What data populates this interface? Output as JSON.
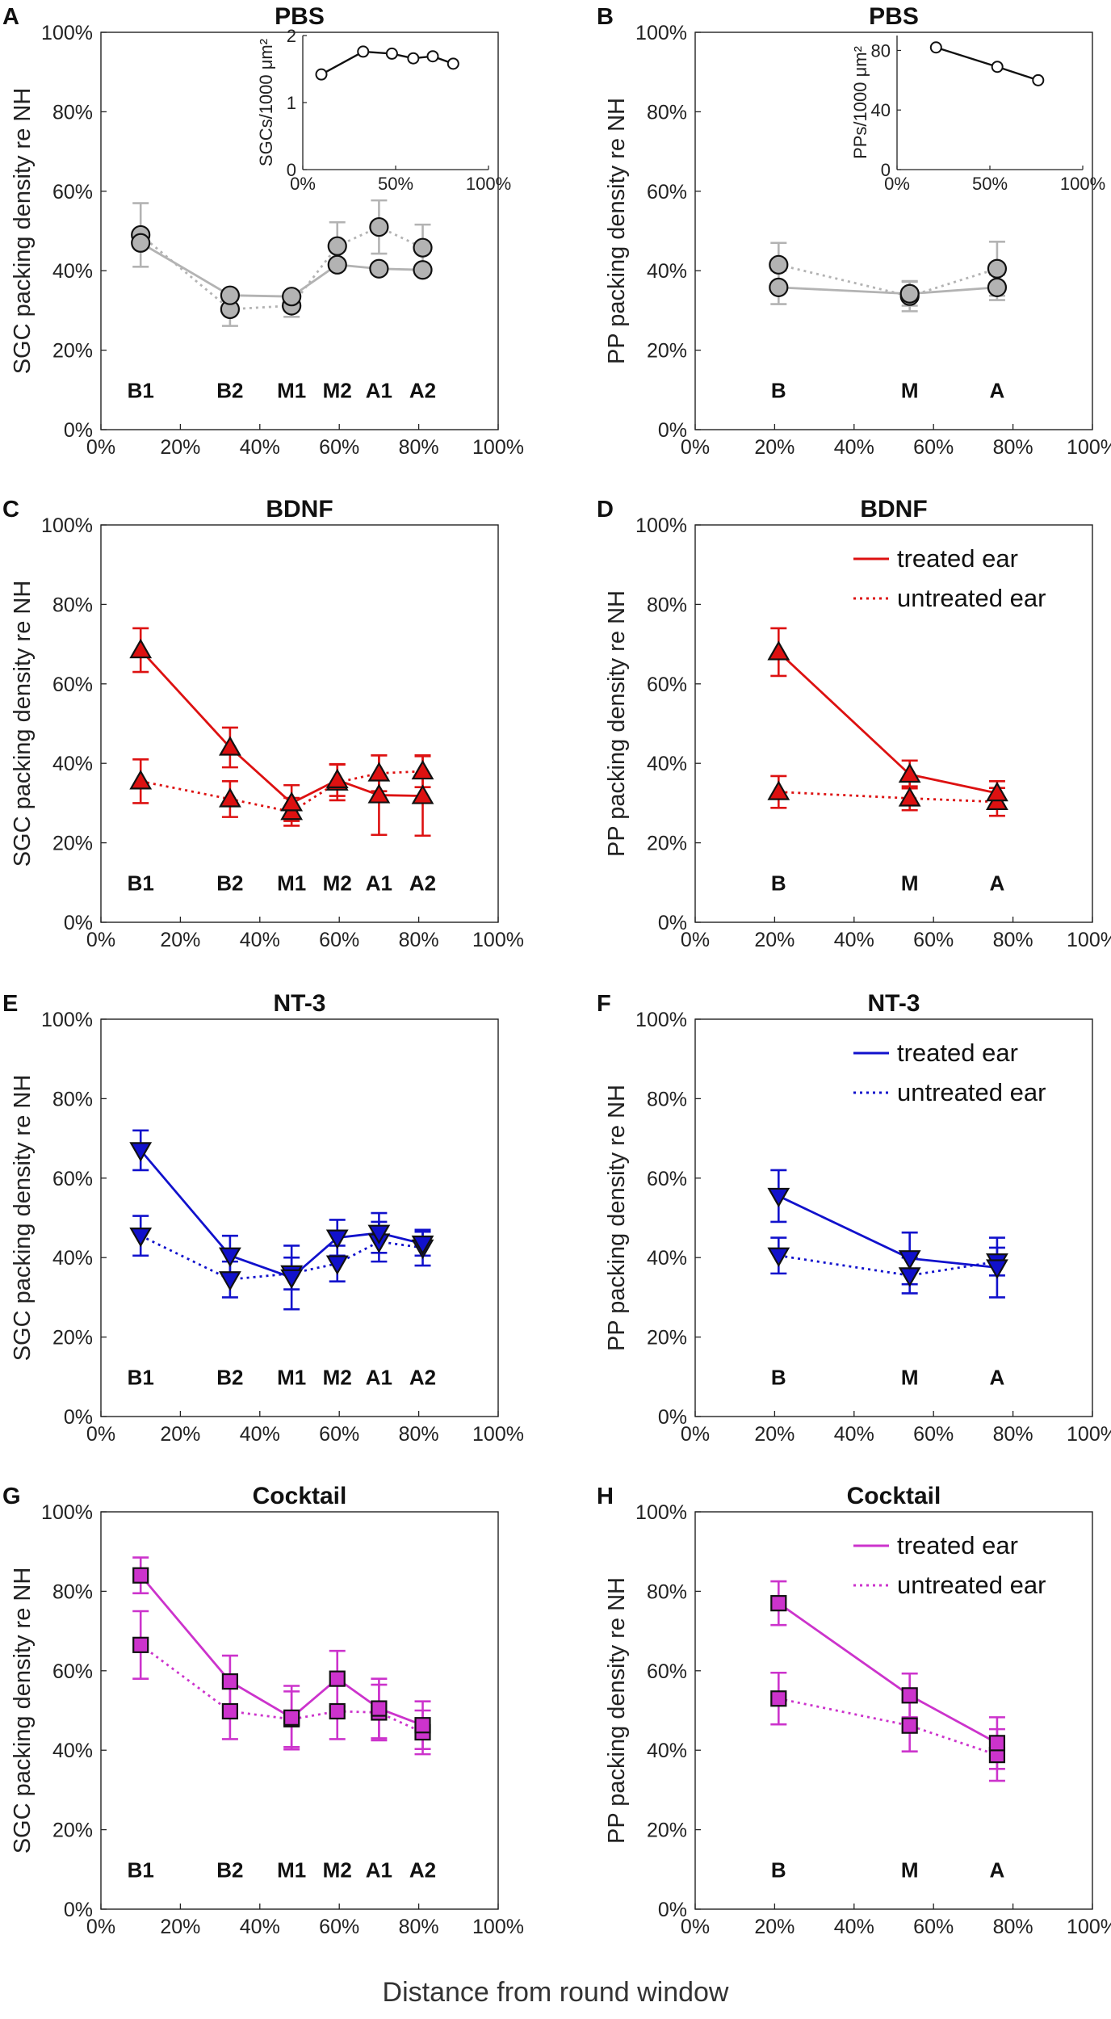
{
  "figure": {
    "xlabel": "Distance from round window"
  },
  "colors": {
    "PBS": "#b3b3b3",
    "BDNF": "#dd1111",
    "NT-3": "#1111cc",
    "Cocktail": "#cc33cc"
  },
  "chart_data": [
    {
      "panel": "A",
      "title": "PBS",
      "type": "line",
      "ylabel": "SGC packing density re NH",
      "xlim": [
        0,
        100
      ],
      "ylim": [
        0,
        100
      ],
      "xticks": [
        "0%",
        "20%",
        "40%",
        "60%",
        "80%",
        "100%"
      ],
      "yticks": [
        "0%",
        "20%",
        "40%",
        "60%",
        "80%",
        "100%"
      ],
      "regions": [
        {
          "label": "B1",
          "x": 10
        },
        {
          "label": "B2",
          "x": 32.5
        },
        {
          "label": "M1",
          "x": 48
        },
        {
          "label": "M2",
          "x": 59.5
        },
        {
          "label": "A1",
          "x": 70
        },
        {
          "label": "A2",
          "x": 81
        }
      ],
      "marker": "circle",
      "series": [
        {
          "name": "treated ear",
          "style": "solid",
          "x": [
            10,
            32.5,
            48,
            59.5,
            70,
            81
          ],
          "y": [
            47,
            33.8,
            33.5,
            41.5,
            40.5,
            40.2
          ],
          "err": [
            0,
            0,
            0,
            0,
            0,
            0
          ]
        },
        {
          "name": "untreated ear",
          "style": "dotted",
          "x": [
            10,
            32.5,
            48,
            59.5,
            70,
            81
          ],
          "y": [
            49,
            30.3,
            31.2,
            46.2,
            51,
            45.8
          ],
          "err": [
            8,
            4.2,
            2.8,
            6,
            6.7,
            5.8
          ]
        }
      ],
      "inset": {
        "ylabel": "SGCs/1000 μm²",
        "xlim": [
          0,
          100
        ],
        "ylim": [
          0,
          2
        ],
        "xticks": [
          "0%",
          "50%",
          "100%"
        ],
        "yticks": [
          "0",
          "1",
          "2"
        ],
        "x": [
          10,
          32.5,
          48,
          59.5,
          70,
          81
        ],
        "y": [
          1.42,
          1.76,
          1.73,
          1.66,
          1.69,
          1.58
        ]
      }
    },
    {
      "panel": "B",
      "title": "PBS",
      "type": "line",
      "ylabel": "PP packing density re NH",
      "xlim": [
        0,
        100
      ],
      "ylim": [
        0,
        100
      ],
      "xticks": [
        "0%",
        "20%",
        "40%",
        "60%",
        "80%",
        "100%"
      ],
      "yticks": [
        "0%",
        "20%",
        "40%",
        "60%",
        "80%",
        "100%"
      ],
      "regions": [
        {
          "label": "B",
          "x": 21
        },
        {
          "label": "M",
          "x": 54
        },
        {
          "label": "A",
          "x": 76
        }
      ],
      "marker": "circle",
      "series": [
        {
          "name": "treated ear",
          "style": "solid",
          "x": [
            21,
            54,
            76
          ],
          "y": [
            35.8,
            34.2,
            35.8
          ],
          "err": [
            4.2,
            3,
            3.2
          ]
        },
        {
          "name": "untreated ear",
          "style": "dotted",
          "x": [
            21,
            54,
            76
          ],
          "y": [
            41.5,
            33.6,
            40.5
          ],
          "err": [
            5.5,
            3.8,
            6.8
          ]
        }
      ],
      "inset": {
        "ylabel": "PPs/1000 μm²",
        "xlim": [
          0,
          100
        ],
        "ylim": [
          0,
          90
        ],
        "xticks": [
          "0%",
          "50%",
          "100%"
        ],
        "yticks": [
          "0",
          "40",
          "80"
        ],
        "x": [
          21,
          54,
          76
        ],
        "y": [
          82,
          69,
          60
        ]
      }
    },
    {
      "panel": "C",
      "title": "BDNF",
      "type": "line",
      "ylabel": "SGC packing density re NH",
      "xlim": [
        0,
        100
      ],
      "ylim": [
        0,
        100
      ],
      "xticks": [
        "0%",
        "20%",
        "40%",
        "60%",
        "80%",
        "100%"
      ],
      "yticks": [
        "0%",
        "20%",
        "40%",
        "60%",
        "80%",
        "100%"
      ],
      "regions": [
        {
          "label": "B1",
          "x": 10
        },
        {
          "label": "B2",
          "x": 32.5
        },
        {
          "label": "M1",
          "x": 48
        },
        {
          "label": "M2",
          "x": 59.5
        },
        {
          "label": "A1",
          "x": 70
        },
        {
          "label": "A2",
          "x": 81
        }
      ],
      "marker": "triangle-up",
      "series": [
        {
          "name": "treated ear",
          "style": "solid",
          "x": [
            10,
            32.5,
            48,
            59.5,
            70,
            81
          ],
          "y": [
            68.5,
            44,
            30,
            35.8,
            32,
            31.8
          ],
          "err": [
            5.5,
            5,
            4.5,
            4,
            10,
            10
          ]
        },
        {
          "name": "untreated ear",
          "style": "dotted",
          "x": [
            10,
            32.5,
            48,
            59.5,
            70,
            81
          ],
          "y": [
            35.5,
            31,
            27.8,
            35.2,
            37.5,
            38
          ],
          "err": [
            5.5,
            4.5,
            3.5,
            4.5,
            4.5,
            4
          ]
        }
      ]
    },
    {
      "panel": "D",
      "title": "BDNF",
      "type": "line",
      "ylabel": "PP packing density re NH",
      "xlim": [
        0,
        100
      ],
      "ylim": [
        0,
        100
      ],
      "xticks": [
        "0%",
        "20%",
        "40%",
        "60%",
        "80%",
        "100%"
      ],
      "yticks": [
        "0%",
        "20%",
        "40%",
        "60%",
        "80%",
        "100%"
      ],
      "regions": [
        {
          "label": "B",
          "x": 21
        },
        {
          "label": "M",
          "x": 54
        },
        {
          "label": "A",
          "x": 76
        }
      ],
      "marker": "triangle-up",
      "legend": [
        "treated ear",
        "untreated ear"
      ],
      "series": [
        {
          "name": "treated ear",
          "style": "solid",
          "x": [
            21,
            54,
            76
          ],
          "y": [
            68,
            37.2,
            32.5
          ],
          "err": [
            6,
            3.5,
            3
          ]
        },
        {
          "name": "untreated ear",
          "style": "dotted",
          "x": [
            21,
            54,
            76
          ],
          "y": [
            32.8,
            31.2,
            30.3
          ],
          "err": [
            4,
            3,
            3.5
          ]
        }
      ]
    },
    {
      "panel": "E",
      "title": "NT-3",
      "type": "line",
      "ylabel": "SGC packing density re NH",
      "xlim": [
        0,
        100
      ],
      "ylim": [
        0,
        100
      ],
      "xticks": [
        "0%",
        "20%",
        "40%",
        "60%",
        "80%",
        "100%"
      ],
      "yticks": [
        "0%",
        "20%",
        "40%",
        "60%",
        "80%",
        "100%"
      ],
      "regions": [
        {
          "label": "B1",
          "x": 10
        },
        {
          "label": "B2",
          "x": 32.5
        },
        {
          "label": "M1",
          "x": 48
        },
        {
          "label": "M2",
          "x": 59.5
        },
        {
          "label": "A1",
          "x": 70
        },
        {
          "label": "A2",
          "x": 81
        }
      ],
      "marker": "triangle-down",
      "series": [
        {
          "name": "treated ear",
          "style": "solid",
          "x": [
            10,
            32.5,
            48,
            59.5,
            70,
            81
          ],
          "y": [
            67,
            40.5,
            35,
            45,
            46.2,
            43.5
          ],
          "err": [
            5,
            5,
            8,
            4.5,
            5,
            3
          ]
        },
        {
          "name": "untreated ear",
          "style": "dotted",
          "x": [
            10,
            32.5,
            48,
            59.5,
            70,
            81
          ],
          "y": [
            45.5,
            34.5,
            36,
            38.5,
            44,
            42.5
          ],
          "err": [
            5,
            4.5,
            4,
            4.5,
            5,
            4.5
          ]
        }
      ]
    },
    {
      "panel": "F",
      "title": "NT-3",
      "type": "line",
      "ylabel": "PP packing density re NH",
      "xlim": [
        0,
        100
      ],
      "ylim": [
        0,
        100
      ],
      "xticks": [
        "0%",
        "20%",
        "40%",
        "60%",
        "80%",
        "100%"
      ],
      "yticks": [
        "0%",
        "20%",
        "40%",
        "60%",
        "80%",
        "100%"
      ],
      "regions": [
        {
          "label": "B",
          "x": 21
        },
        {
          "label": "M",
          "x": 54
        },
        {
          "label": "A",
          "x": 76
        }
      ],
      "marker": "triangle-down",
      "legend": [
        "treated ear",
        "untreated ear"
      ],
      "series": [
        {
          "name": "treated ear",
          "style": "solid",
          "x": [
            21,
            54,
            76
          ],
          "y": [
            55.5,
            39.8,
            37.5
          ],
          "err": [
            6.5,
            6.5,
            7.5
          ]
        },
        {
          "name": "untreated ear",
          "style": "dotted",
          "x": [
            21,
            54,
            76
          ],
          "y": [
            40.5,
            35.5,
            39
          ],
          "err": [
            4.5,
            4.5,
            3.5
          ]
        }
      ]
    },
    {
      "panel": "G",
      "title": "Cocktail",
      "type": "line",
      "ylabel": "SGC packing density re NH",
      "xlim": [
        0,
        100
      ],
      "ylim": [
        0,
        100
      ],
      "xticks": [
        "0%",
        "20%",
        "40%",
        "60%",
        "80%",
        "100%"
      ],
      "yticks": [
        "0%",
        "20%",
        "40%",
        "60%",
        "80%",
        "100%"
      ],
      "regions": [
        {
          "label": "B1",
          "x": 10
        },
        {
          "label": "B2",
          "x": 32.5
        },
        {
          "label": "M1",
          "x": 48
        },
        {
          "label": "M2",
          "x": 59.5
        },
        {
          "label": "A1",
          "x": 70
        },
        {
          "label": "A2",
          "x": 81
        }
      ],
      "marker": "square",
      "series": [
        {
          "name": "treated ear",
          "style": "solid",
          "x": [
            10,
            32.5,
            48,
            59.5,
            70,
            81
          ],
          "y": [
            84,
            57.3,
            48.2,
            58,
            50.5,
            46.3
          ],
          "err": [
            4.5,
            6.5,
            8,
            7,
            7.5,
            6
          ]
        },
        {
          "name": "untreated ear",
          "style": "dotted",
          "x": [
            10,
            32.5,
            48,
            59.5,
            70,
            81
          ],
          "y": [
            66.5,
            49.8,
            47.8,
            49.8,
            49.5,
            44.5
          ],
          "err": [
            8.5,
            7,
            7,
            7,
            7,
            5.5
          ]
        }
      ]
    },
    {
      "panel": "H",
      "title": "Cocktail",
      "type": "line",
      "ylabel": "PP packing density re NH",
      "xlim": [
        0,
        100
      ],
      "ylim": [
        0,
        100
      ],
      "xticks": [
        "0%",
        "20%",
        "40%",
        "60%",
        "80%",
        "100%"
      ],
      "yticks": [
        "0%",
        "20%",
        "40%",
        "60%",
        "80%",
        "100%"
      ],
      "regions": [
        {
          "label": "B",
          "x": 21
        },
        {
          "label": "M",
          "x": 54
        },
        {
          "label": "A",
          "x": 76
        }
      ],
      "marker": "square",
      "legend": [
        "treated ear",
        "untreated ear"
      ],
      "series": [
        {
          "name": "treated ear",
          "style": "solid",
          "x": [
            21,
            54,
            76
          ],
          "y": [
            77,
            53.8,
            41.8
          ],
          "err": [
            5.5,
            5.5,
            6.5
          ]
        },
        {
          "name": "untreated ear",
          "style": "dotted",
          "x": [
            21,
            54,
            76
          ],
          "y": [
            53,
            46.2,
            38.8
          ],
          "err": [
            6.5,
            6.5,
            6.5
          ]
        }
      ]
    }
  ]
}
